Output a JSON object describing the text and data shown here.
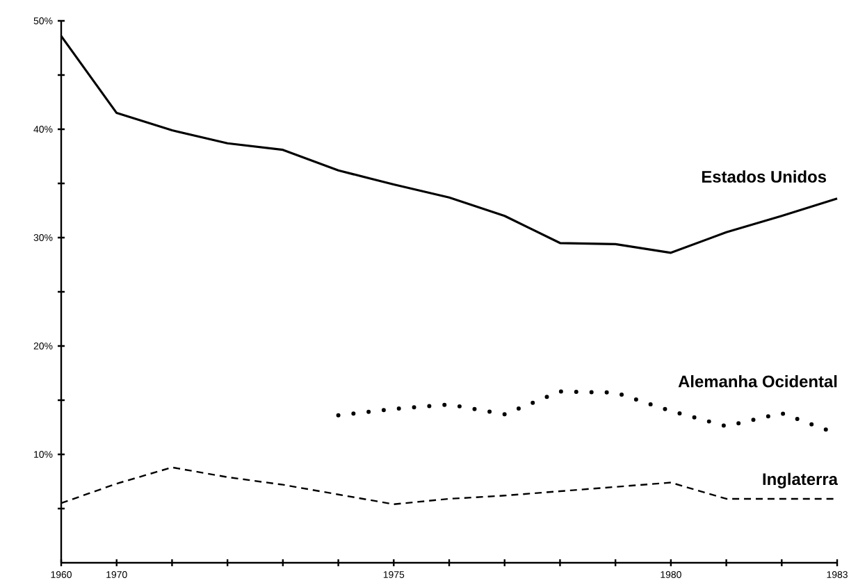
{
  "chart_data": {
    "type": "line",
    "categories": [
      "1960",
      "1970",
      null,
      null,
      null,
      null,
      "1975",
      null,
      null,
      null,
      null,
      "1980",
      null,
      null,
      "1983"
    ],
    "ylim": [
      0,
      50
    ],
    "yticks": [
      {
        "value": 5,
        "label": null
      },
      {
        "value": 10,
        "label": "10%"
      },
      {
        "value": 15,
        "label": null
      },
      {
        "value": 20,
        "label": "20%"
      },
      {
        "value": 25,
        "label": null
      },
      {
        "value": 30,
        "label": "30%"
      },
      {
        "value": 35,
        "label": null
      },
      {
        "value": 40,
        "label": "40%"
      },
      {
        "value": 45,
        "label": null
      },
      {
        "value": 50,
        "label": "50%"
      }
    ],
    "grid": false,
    "legend": false,
    "marker": "none",
    "series": [
      {
        "name": "Estados Unidos",
        "color": "#000000",
        "line_style": "solid",
        "values": [
          48.6,
          41.5,
          39.9,
          38.7,
          38.1,
          36.2,
          34.9,
          33.7,
          32.0,
          29.5,
          29.4,
          28.6,
          30.5,
          32.0,
          33.6
        ]
      },
      {
        "name": "Alemanha Ocidental",
        "color": "#000000",
        "line_style": "dotted",
        "values": [
          null,
          null,
          null,
          null,
          null,
          13.6,
          14.2,
          14.6,
          13.7,
          15.8,
          15.7,
          14.0,
          12.6,
          13.8,
          11.9
        ]
      },
      {
        "name": "Inglaterra",
        "color": "#000000",
        "line_style": "dashed",
        "values": [
          5.5,
          7.3,
          8.8,
          7.9,
          7.2,
          6.3,
          5.4,
          5.9,
          6.2,
          6.6,
          7.0,
          7.4,
          5.9,
          5.9,
          5.9
        ]
      }
    ]
  }
}
